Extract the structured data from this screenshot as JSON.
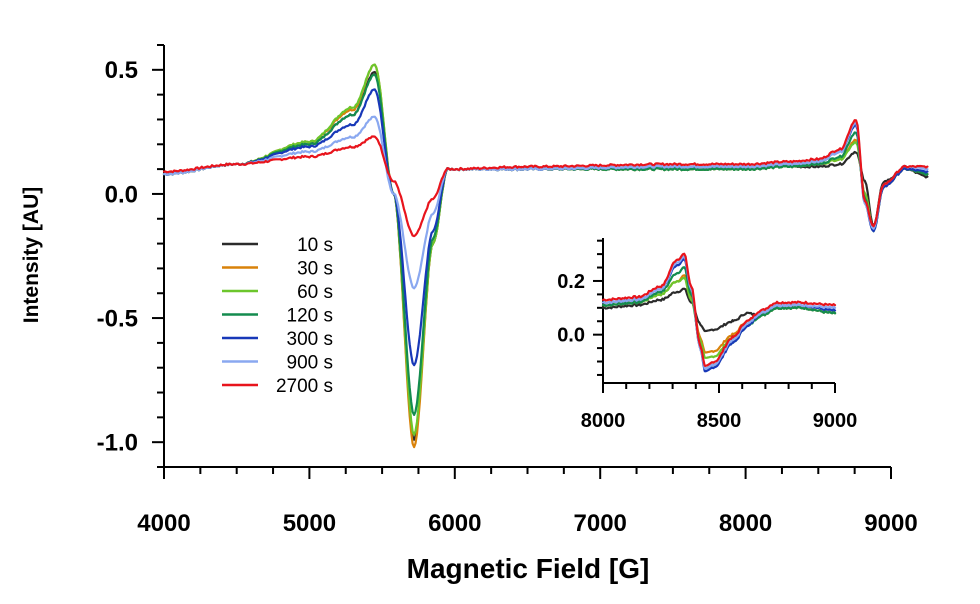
{
  "chart_data": [
    {
      "id": "main",
      "type": "line",
      "xlabel": "Magnetic Field [G]",
      "ylabel": "Intensity [AU]",
      "xlim": [
        4000,
        9000
      ],
      "ylim": [
        -1.1,
        0.6
      ],
      "xticks": [
        "4000",
        "5000",
        "6000",
        "7000",
        "8000",
        "9000"
      ],
      "yticks": [
        "0.5",
        "0.0",
        "-0.5",
        "-1.0"
      ],
      "grid": false,
      "legend_position": "center-left",
      "series": [
        {
          "name": "10 s",
          "color": "#2b2b2b",
          "x": [
            4000,
            4500,
            5000,
            5300,
            5450,
            5580,
            5720,
            5850,
            5950,
            6500,
            7500,
            8000,
            8300,
            8500,
            8650,
            8760,
            8820,
            8880,
            8950,
            9100,
            9250
          ],
          "y": [
            0.08,
            0.12,
            0.2,
            0.32,
            0.49,
            0.0,
            -0.99,
            -0.2,
            0.1,
            0.1,
            0.1,
            0.1,
            0.11,
            0.11,
            0.12,
            0.17,
            0.05,
            -0.13,
            0.05,
            0.1,
            0.07
          ]
        },
        {
          "name": "30 s",
          "color": "#d9820a",
          "x": [
            4000,
            4500,
            5000,
            5300,
            5450,
            5580,
            5720,
            5850,
            5950,
            6500,
            7500,
            8000,
            8300,
            8500,
            8650,
            8760,
            8820,
            8880,
            8950,
            9100,
            9250
          ],
          "y": [
            0.08,
            0.12,
            0.21,
            0.34,
            0.52,
            0.0,
            -1.02,
            -0.2,
            0.1,
            0.1,
            0.1,
            0.1,
            0.11,
            0.12,
            0.14,
            0.22,
            0.0,
            -0.14,
            0.03,
            0.1,
            0.08
          ]
        },
        {
          "name": "60 s",
          "color": "#6cc62c",
          "x": [
            4000,
            4500,
            5000,
            5300,
            5450,
            5580,
            5720,
            5850,
            5950,
            6500,
            7500,
            8000,
            8300,
            8500,
            8650,
            8760,
            8820,
            8880,
            8950,
            9100,
            9250
          ],
          "y": [
            0.08,
            0.12,
            0.21,
            0.35,
            0.52,
            0.0,
            -0.97,
            -0.2,
            0.1,
            0.1,
            0.1,
            0.1,
            0.11,
            0.12,
            0.14,
            0.21,
            0.0,
            -0.14,
            0.04,
            0.1,
            0.08
          ]
        },
        {
          "name": "120 s",
          "color": "#148c4f",
          "x": [
            4000,
            4500,
            5000,
            5300,
            5450,
            5580,
            5720,
            5850,
            5950,
            6500,
            7500,
            8000,
            8300,
            8500,
            8650,
            8760,
            8820,
            8880,
            8950,
            9100,
            9250
          ],
          "y": [
            0.08,
            0.12,
            0.2,
            0.32,
            0.48,
            0.0,
            -0.89,
            -0.18,
            0.1,
            0.1,
            0.1,
            0.1,
            0.11,
            0.12,
            0.15,
            0.25,
            -0.02,
            -0.15,
            0.03,
            0.1,
            0.08
          ]
        },
        {
          "name": "300 s",
          "color": "#1838b8",
          "x": [
            4000,
            4500,
            5000,
            5300,
            5450,
            5580,
            5720,
            5850,
            5950,
            6500,
            7500,
            8000,
            8300,
            8500,
            8650,
            8760,
            8820,
            8880,
            8950,
            9100,
            9250
          ],
          "y": [
            0.08,
            0.12,
            0.19,
            0.28,
            0.42,
            0.0,
            -0.69,
            -0.15,
            0.1,
            0.1,
            0.11,
            0.11,
            0.12,
            0.13,
            0.17,
            0.28,
            -0.04,
            -0.15,
            0.03,
            0.1,
            0.09
          ]
        },
        {
          "name": "900 s",
          "color": "#8aa8f0",
          "x": [
            4000,
            4500,
            5000,
            5300,
            5450,
            5580,
            5720,
            5850,
            5950,
            6500,
            7500,
            8000,
            8300,
            8500,
            8650,
            8760,
            8820,
            8880,
            8950,
            9100,
            9250
          ],
          "y": [
            0.08,
            0.12,
            0.17,
            0.23,
            0.31,
            0.0,
            -0.38,
            -0.08,
            0.1,
            0.1,
            0.11,
            0.11,
            0.12,
            0.13,
            0.17,
            0.29,
            -0.04,
            -0.14,
            0.04,
            0.11,
            0.1
          ]
        },
        {
          "name": "2700 s",
          "color": "#e8141c",
          "x": [
            4000,
            4500,
            5000,
            5300,
            5450,
            5580,
            5720,
            5850,
            5950,
            6500,
            7500,
            8000,
            8300,
            8500,
            8650,
            8760,
            8820,
            8880,
            8950,
            9100,
            9250
          ],
          "y": [
            0.09,
            0.12,
            0.15,
            0.19,
            0.23,
            0.05,
            -0.17,
            -0.02,
            0.1,
            0.11,
            0.12,
            0.12,
            0.13,
            0.14,
            0.18,
            0.3,
            -0.03,
            -0.13,
            0.04,
            0.11,
            0.11
          ]
        }
      ]
    },
    {
      "id": "inset",
      "type": "line",
      "xlabel": "",
      "ylabel": "",
      "xlim": [
        8000,
        9000
      ],
      "ylim": [
        -0.18,
        0.36
      ],
      "xticks": [
        "8000",
        "8500",
        "9000"
      ],
      "yticks": [
        "0.2",
        "0.0"
      ],
      "grid": false,
      "series": [
        {
          "name": "10 s",
          "color": "#2b2b2b",
          "x": [
            8000,
            8150,
            8250,
            8320,
            8350,
            8380,
            8420,
            8440,
            8480,
            8560,
            8620,
            8680,
            8750,
            8850,
            9000
          ],
          "y": [
            0.1,
            0.11,
            0.13,
            0.16,
            0.17,
            0.12,
            0.04,
            0.01,
            0.02,
            0.05,
            0.08,
            0.07,
            0.1,
            0.1,
            0.08
          ]
        },
        {
          "name": "30 s",
          "color": "#d9820a",
          "x": [
            8000,
            8150,
            8250,
            8320,
            8350,
            8380,
            8420,
            8440,
            8480,
            8560,
            8620,
            8680,
            8750,
            8850,
            9000
          ],
          "y": [
            0.11,
            0.12,
            0.15,
            0.2,
            0.22,
            0.14,
            -0.01,
            -0.07,
            -0.06,
            0.0,
            0.05,
            0.07,
            0.1,
            0.1,
            0.08
          ]
        },
        {
          "name": "60 s",
          "color": "#6cc62c",
          "x": [
            8000,
            8150,
            8250,
            8320,
            8350,
            8380,
            8420,
            8440,
            8480,
            8560,
            8620,
            8680,
            8750,
            8850,
            9000
          ],
          "y": [
            0.11,
            0.12,
            0.15,
            0.2,
            0.21,
            0.13,
            -0.02,
            -0.09,
            -0.08,
            -0.01,
            0.04,
            0.07,
            0.1,
            0.1,
            0.08
          ]
        },
        {
          "name": "120 s",
          "color": "#148c4f",
          "x": [
            8000,
            8150,
            8250,
            8320,
            8350,
            8380,
            8420,
            8440,
            8480,
            8560,
            8620,
            8680,
            8750,
            8850,
            9000
          ],
          "y": [
            0.11,
            0.12,
            0.16,
            0.23,
            0.25,
            0.15,
            -0.04,
            -0.13,
            -0.11,
            -0.03,
            0.03,
            0.07,
            0.1,
            0.1,
            0.08
          ]
        },
        {
          "name": "300 s",
          "color": "#1838b8",
          "x": [
            8000,
            8150,
            8250,
            8320,
            8350,
            8380,
            8420,
            8440,
            8480,
            8560,
            8620,
            8680,
            8750,
            8850,
            9000
          ],
          "y": [
            0.12,
            0.13,
            0.17,
            0.26,
            0.28,
            0.17,
            -0.05,
            -0.14,
            -0.12,
            -0.03,
            0.03,
            0.08,
            0.11,
            0.11,
            0.09
          ]
        },
        {
          "name": "900 s",
          "color": "#8aa8f0",
          "x": [
            8000,
            8150,
            8250,
            8320,
            8350,
            8380,
            8420,
            8440,
            8480,
            8560,
            8620,
            8680,
            8750,
            8850,
            9000
          ],
          "y": [
            0.12,
            0.13,
            0.17,
            0.27,
            0.29,
            0.17,
            -0.05,
            -0.13,
            -0.11,
            -0.02,
            0.04,
            0.08,
            0.11,
            0.11,
            0.1
          ]
        },
        {
          "name": "2700 s",
          "color": "#e8141c",
          "x": [
            8000,
            8150,
            8250,
            8320,
            8350,
            8380,
            8420,
            8440,
            8480,
            8560,
            8620,
            8680,
            8750,
            8850,
            9000
          ],
          "y": [
            0.13,
            0.14,
            0.18,
            0.28,
            0.3,
            0.18,
            -0.04,
            -0.12,
            -0.1,
            -0.01,
            0.05,
            0.09,
            0.12,
            0.12,
            0.11
          ]
        }
      ]
    }
  ]
}
